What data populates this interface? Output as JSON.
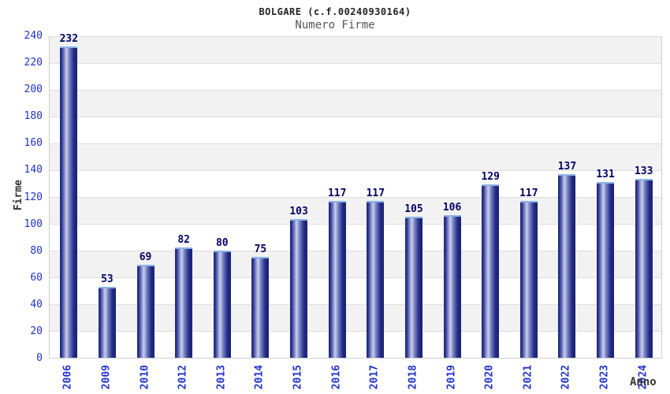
{
  "header": {
    "title": "BOLGARE (c.f.00240930164)",
    "subtitle": "Numero Firme"
  },
  "chart_data": {
    "type": "bar",
    "title": "BOLGARE (c.f.00240930164)",
    "subtitle": "Numero Firme",
    "xlabel": "Anno",
    "ylabel": "Firme",
    "categories": [
      "2006",
      "2009",
      "2010",
      "2012",
      "2013",
      "2014",
      "2015",
      "2016",
      "2017",
      "2018",
      "2019",
      "2020",
      "2021",
      "2022",
      "2023",
      "2024"
    ],
    "values": [
      232,
      53,
      69,
      82,
      80,
      75,
      103,
      117,
      117,
      105,
      106,
      129,
      117,
      137,
      131,
      133
    ],
    "ylim": [
      0,
      240
    ],
    "ytick_step": 20,
    "grid": true,
    "legend": "none",
    "colors": {
      "tick_label": "#2233cc",
      "value_label": "#000066",
      "title": "#222222",
      "subtitle": "#555555",
      "axis_label": "#333333",
      "band_light": "#ffffff",
      "band_dark": "#f2f2f2",
      "gridline": "#dedede",
      "plot_border": "#cfcfcf",
      "bar_gradient": [
        "#202878",
        "#2b3590",
        "#c9d0f0",
        "#7580c0",
        "#232b86",
        "#1a2070"
      ],
      "bar_cap": "#8ab4e6"
    }
  }
}
